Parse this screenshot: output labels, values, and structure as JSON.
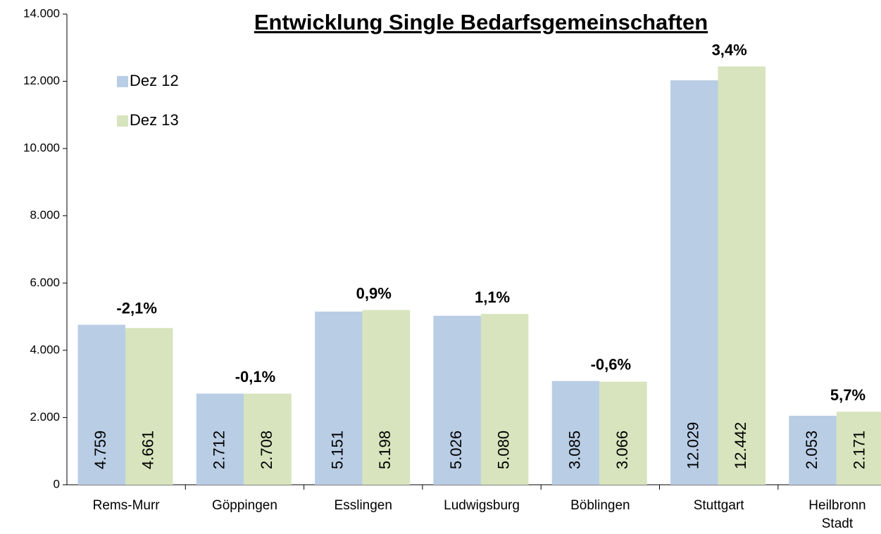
{
  "chart_data": {
    "type": "bar",
    "title": "Entwicklung Single Bedarfsgemeinschaften",
    "categories": [
      "Rems-Murr",
      "Göppingen",
      "Esslingen",
      "Ludwigsburg",
      "Böblingen",
      "Stuttgart",
      "Heilbronn Stadt"
    ],
    "series": [
      {
        "name": "Dez 12",
        "color": "#b9cde5",
        "values": [
          4759,
          2712,
          5151,
          5026,
          3085,
          12029,
          2053
        ],
        "value_labels": [
          "4.759",
          "2.712",
          "5.151",
          "5.026",
          "3.085",
          "12.029",
          "2.053"
        ]
      },
      {
        "name": "Dez 13",
        "color": "#d7e4bd",
        "values": [
          4661,
          2708,
          5198,
          5080,
          3066,
          12442,
          2171
        ],
        "value_labels": [
          "4.661",
          "2.708",
          "5.198",
          "5.080",
          "3.066",
          "12.442",
          "2.171"
        ]
      }
    ],
    "annotations": [
      "-2,1%",
      "-0,1%",
      "0,9%",
      "1,1%",
      "-0,6%",
      "3,4%",
      "5,7%"
    ],
    "ylim": [
      0,
      14000
    ],
    "yticks": [
      0,
      {
        "value": 2000,
        "label": "2.000"
      },
      {
        "value": 4000,
        "label": "4.000"
      },
      {
        "value": 6000,
        "label": "6.000"
      },
      {
        "value": 8000,
        "label": "8.000"
      },
      {
        "value": 10000,
        "label": "10.000"
      },
      {
        "value": 12000,
        "label": "12.000"
      },
      {
        "value": 14000,
        "label": "14.000"
      }
    ],
    "legend": "upper left"
  }
}
